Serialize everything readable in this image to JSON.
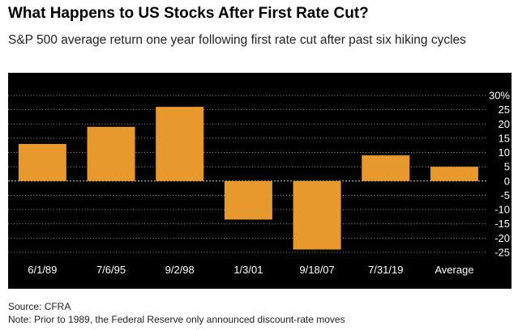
{
  "title": "What Happens to US Stocks After First Rate Cut?",
  "subtitle": "S&P 500 average return one year following first rate cut after past six hiking cycles",
  "source": "Source: CFRA",
  "note": "Note:  Prior to 1989, the Federal Reserve only announced discount-rate moves",
  "colors": {
    "background": "#000000",
    "bar": "#E8992E",
    "grid": "#ffffff",
    "text": "#ffffff"
  },
  "chart_data": {
    "type": "bar",
    "title": "What Happens to US Stocks After First Rate Cut?",
    "subtitle": "S&P 500 average return one year following first rate cut after past six hiking cycles",
    "categories": [
      "6/1/89",
      "7/6/95",
      "9/2/98",
      "1/3/01",
      "9/18/07",
      "7/31/19",
      "Average"
    ],
    "values": [
      13,
      19,
      26,
      -13.5,
      -24,
      9,
      5
    ],
    "ylim": [
      -25,
      30
    ],
    "yticks": [
      -25,
      -20,
      -15,
      -10,
      -5,
      0,
      5,
      10,
      15,
      20,
      25,
      30
    ],
    "ytick_labels": [
      "-25",
      "-20",
      "-15",
      "-10",
      "-5",
      "0",
      "5",
      "10",
      "15",
      "20",
      "25",
      "30%"
    ],
    "y_axis_side": "right",
    "grid": "horizontal dotted",
    "xlabel": "",
    "ylabel": ""
  }
}
